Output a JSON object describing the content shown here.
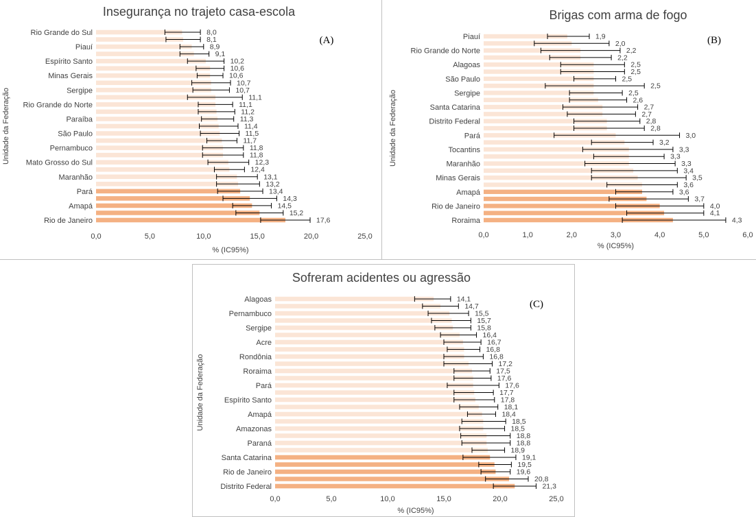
{
  "colors": {
    "light_bar": "#fbe5d6",
    "dark_bar": "#f4b183",
    "error_bar": "#000000",
    "frame": "#bfbfbf",
    "text": "#404040"
  },
  "chart_data": [
    {
      "panel_label": "(A)",
      "type": "bar",
      "orientation": "horizontal",
      "title": "Insegurança no trajeto casa-escola",
      "xlabel": "% (IC95%)",
      "ylabel": "Unidade da Federação",
      "xlim": [
        0,
        25
      ],
      "xticks": [
        "0,0",
        "5,0",
        "10,0",
        "15,0",
        "20,0",
        "25,0"
      ],
      "grid": false,
      "categories": [
        "Rio Grande do Sul",
        "",
        "Piauí",
        "",
        "Espírito Santo",
        "",
        "Minas Gerais",
        "",
        "Sergipe",
        "",
        "Rio Grande do Norte",
        "",
        "Paraíba",
        "",
        "São Paulo",
        "",
        "Pernambuco",
        "",
        "Mato Grosso do Sul",
        "",
        "Maranhão",
        "",
        "Pará",
        "",
        "Amapá",
        "",
        "Rio de Janeiro"
      ],
      "values": [
        8.0,
        8.1,
        8.9,
        9.1,
        10.2,
        10.6,
        10.6,
        10.7,
        10.7,
        11.1,
        11.1,
        11.2,
        11.3,
        11.4,
        11.5,
        11.7,
        11.8,
        11.8,
        12.3,
        12.4,
        13.1,
        13.2,
        13.4,
        14.3,
        14.5,
        15.2,
        17.6
      ],
      "value_labels": [
        "8,0",
        "8,1",
        "8,9",
        "9,1",
        "10,2",
        "10,6",
        "10,6",
        "10,7",
        "10,7",
        "11,1",
        "11,1",
        "11,2",
        "11,3",
        "11,4",
        "11,5",
        "11,7",
        "11,8",
        "11,8",
        "12,3",
        "12,4",
        "13,1",
        "13,2",
        "13,4",
        "14,3",
        "14,5",
        "15,2",
        "17,6"
      ],
      "ci_low": [
        6.4,
        6.5,
        7.8,
        7.8,
        8.5,
        9.3,
        9.4,
        8.9,
        9.0,
        8.5,
        9.5,
        9.5,
        9.8,
        9.6,
        9.7,
        10.3,
        9.9,
        9.9,
        10.4,
        11.0,
        11.2,
        11.2,
        11.3,
        11.8,
        12.7,
        13.0,
        15.3
      ],
      "ci_high": [
        9.7,
        9.7,
        10.0,
        10.5,
        11.9,
        11.9,
        11.8,
        12.5,
        12.4,
        13.6,
        12.7,
        12.9,
        12.8,
        13.2,
        13.3,
        13.1,
        13.7,
        13.7,
        14.2,
        13.8,
        15.0,
        15.2,
        15.5,
        16.8,
        16.3,
        17.4,
        19.9
      ],
      "highlight_count": 5
    },
    {
      "panel_label": "(B)",
      "type": "bar",
      "orientation": "horizontal",
      "title": "Brigas com arma de fogo",
      "xlabel": "% (IC95%)",
      "ylabel": "Unidade da Federação",
      "xlim": [
        0,
        6
      ],
      "xticks": [
        "0,0",
        "1,0",
        "2,0",
        "3,0",
        "4,0",
        "5,0",
        "6,0"
      ],
      "grid": false,
      "categories": [
        "Piauí",
        "",
        "Rio Grande do Norte",
        "",
        "Alagoas",
        "",
        "São Paulo",
        "",
        "Sergipe",
        "",
        "Santa Catarina",
        "",
        "Distrito Federal",
        "",
        "Pará",
        "",
        "Tocantins",
        "",
        "Maranhão",
        "",
        "Minas Gerais",
        "",
        "Amapá",
        "",
        "Rio de Janeiro",
        "",
        "Roraima"
      ],
      "values": [
        1.9,
        2.0,
        2.2,
        2.2,
        2.5,
        2.5,
        2.5,
        2.5,
        2.5,
        2.6,
        2.7,
        2.7,
        2.8,
        2.8,
        3.0,
        3.2,
        3.3,
        3.3,
        3.3,
        3.4,
        3.5,
        3.6,
        3.6,
        3.7,
        4.0,
        4.1,
        4.3
      ],
      "value_labels": [
        "1,9",
        "2,0",
        "2,2",
        "2,2",
        "2,5",
        "2,5",
        "2,5",
        "2,5",
        "2,5",
        "2,6",
        "2,7",
        "2,7",
        "2,8",
        "2,8",
        "3,0",
        "3,2",
        "3,3",
        "3,3",
        "3,3",
        "3,4",
        "3,5",
        "3,6",
        "3,6",
        "3,7",
        "4,0",
        "4,1",
        "4,3"
      ],
      "ci_low": [
        1.45,
        1.15,
        1.3,
        1.5,
        1.75,
        1.75,
        2.05,
        1.4,
        1.95,
        1.95,
        1.8,
        1.9,
        2.05,
        2.05,
        1.6,
        2.45,
        2.25,
        2.5,
        2.3,
        2.45,
        2.45,
        2.8,
        3.0,
        2.85,
        3.0,
        3.25,
        3.15
      ],
      "ci_high": [
        2.4,
        2.85,
        3.1,
        2.9,
        3.2,
        3.2,
        3.0,
        3.65,
        3.15,
        3.25,
        3.5,
        3.45,
        3.55,
        3.65,
        4.45,
        3.85,
        4.3,
        4.1,
        4.35,
        4.4,
        4.6,
        4.4,
        4.3,
        4.65,
        5.0,
        5.0,
        5.5
      ],
      "highlight_count": 5
    },
    {
      "panel_label": "(C)",
      "type": "bar",
      "orientation": "horizontal",
      "title": "Sofreram acidentes ou agressão",
      "xlabel": "% (IC95%)",
      "ylabel": "Unidade da Federação",
      "xlim": [
        0,
        25
      ],
      "xticks": [
        "0,0",
        "5,0",
        "10,0",
        "15,0",
        "20,0",
        "25,0"
      ],
      "grid": false,
      "categories": [
        "Alagoas",
        "",
        "Pernambuco",
        "",
        "Sergipe",
        "",
        "Acre",
        "",
        "Rondônia",
        "",
        "Roraima",
        "",
        "Pará",
        "",
        "Espírito Santo",
        "",
        "Amapá",
        "",
        "Amazonas",
        "",
        "Paraná",
        "",
        "Santa Catarina",
        "",
        "Rio de Janeiro",
        "",
        "Distrito Federal"
      ],
      "values": [
        14.1,
        14.7,
        15.5,
        15.7,
        15.8,
        16.4,
        16.7,
        16.8,
        16.8,
        17.2,
        17.5,
        17.6,
        17.6,
        17.7,
        17.8,
        18.1,
        18.4,
        18.5,
        18.5,
        18.8,
        18.8,
        18.9,
        19.1,
        19.5,
        19.6,
        20.8,
        21.3
      ],
      "value_labels": [
        "14,1",
        "14,7",
        "15,5",
        "15,7",
        "15,8",
        "16,4",
        "16,7",
        "16,8",
        "16,8",
        "17,2",
        "17,5",
        "17,6",
        "17,6",
        "17,7",
        "17,8",
        "18,1",
        "18,4",
        "18,5",
        "18,5",
        "18,8",
        "18,8",
        "18,9",
        "19,1",
        "19,5",
        "19,6",
        "20,8",
        "21,3"
      ],
      "ci_low": [
        12.4,
        13.1,
        13.6,
        13.9,
        14.2,
        14.7,
        15.0,
        15.3,
        15.0,
        15.0,
        15.9,
        15.9,
        15.3,
        15.9,
        15.9,
        16.4,
        17.1,
        16.6,
        16.4,
        16.5,
        16.6,
        17.5,
        16.7,
        18.1,
        18.3,
        18.7,
        19.4
      ],
      "ci_high": [
        15.6,
        16.3,
        17.2,
        17.4,
        17.4,
        17.9,
        18.3,
        18.2,
        18.5,
        19.3,
        19.1,
        19.2,
        19.9,
        19.4,
        19.5,
        19.8,
        19.6,
        20.5,
        20.4,
        20.9,
        20.9,
        20.4,
        21.4,
        21.0,
        20.9,
        22.5,
        23.2
      ],
      "highlight_count": 5
    }
  ]
}
